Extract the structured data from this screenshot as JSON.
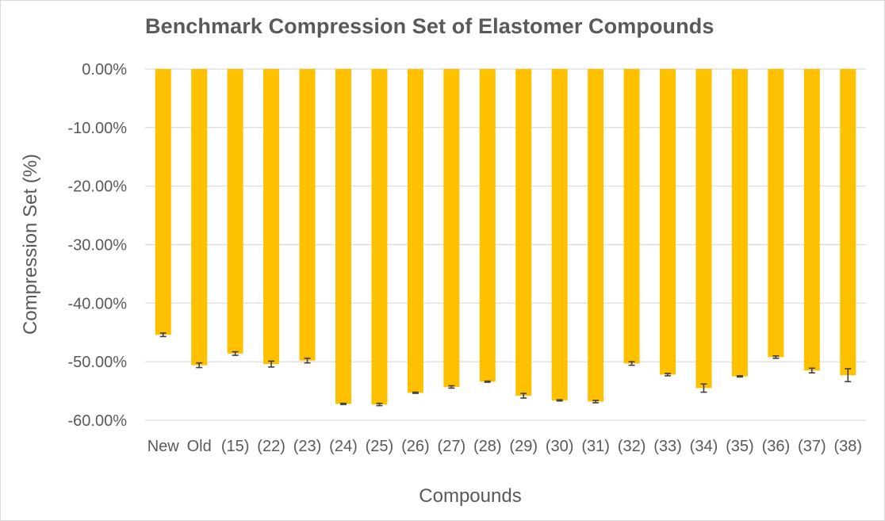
{
  "chart_data": {
    "type": "bar",
    "title": "Benchmark Compression Set of Elastomer Compounds",
    "xlabel": "Compounds",
    "ylabel": "Compression Set (%)",
    "ylim": [
      -60,
      0
    ],
    "ytick_values": [
      0,
      -10,
      -20,
      -30,
      -40,
      -50,
      -60
    ],
    "ytick_labels": [
      "0.00%",
      "-10.00%",
      "-20.00%",
      "-30.00%",
      "-40.00%",
      "-50.00%",
      "-60.00%"
    ],
    "grid": true,
    "legend": "none",
    "bar_color": "#FFC000",
    "categories": [
      "New",
      "Old",
      "(15)",
      "(22)",
      "(23)",
      "(24)",
      "(25)",
      "(26)",
      "(27)",
      "(28)",
      "(29)",
      "(30)",
      "(31)",
      "(32)",
      "(33)",
      "(34)",
      "(35)",
      "(36)",
      "(37)",
      "(38)"
    ],
    "values": [
      -45.4,
      -50.6,
      -48.6,
      -50.4,
      -49.8,
      -57.2,
      -57.3,
      -55.3,
      -54.3,
      -53.4,
      -55.8,
      -56.6,
      -56.8,
      -50.3,
      -52.2,
      -54.5,
      -52.5,
      -49.2,
      -51.5,
      -52.3
    ],
    "errors": [
      0.3,
      0.4,
      0.3,
      0.5,
      0.4,
      0.1,
      0.2,
      0.1,
      0.2,
      0.1,
      0.4,
      0.1,
      0.2,
      0.3,
      0.2,
      0.7,
      0.1,
      0.2,
      0.4,
      1.1
    ]
  }
}
